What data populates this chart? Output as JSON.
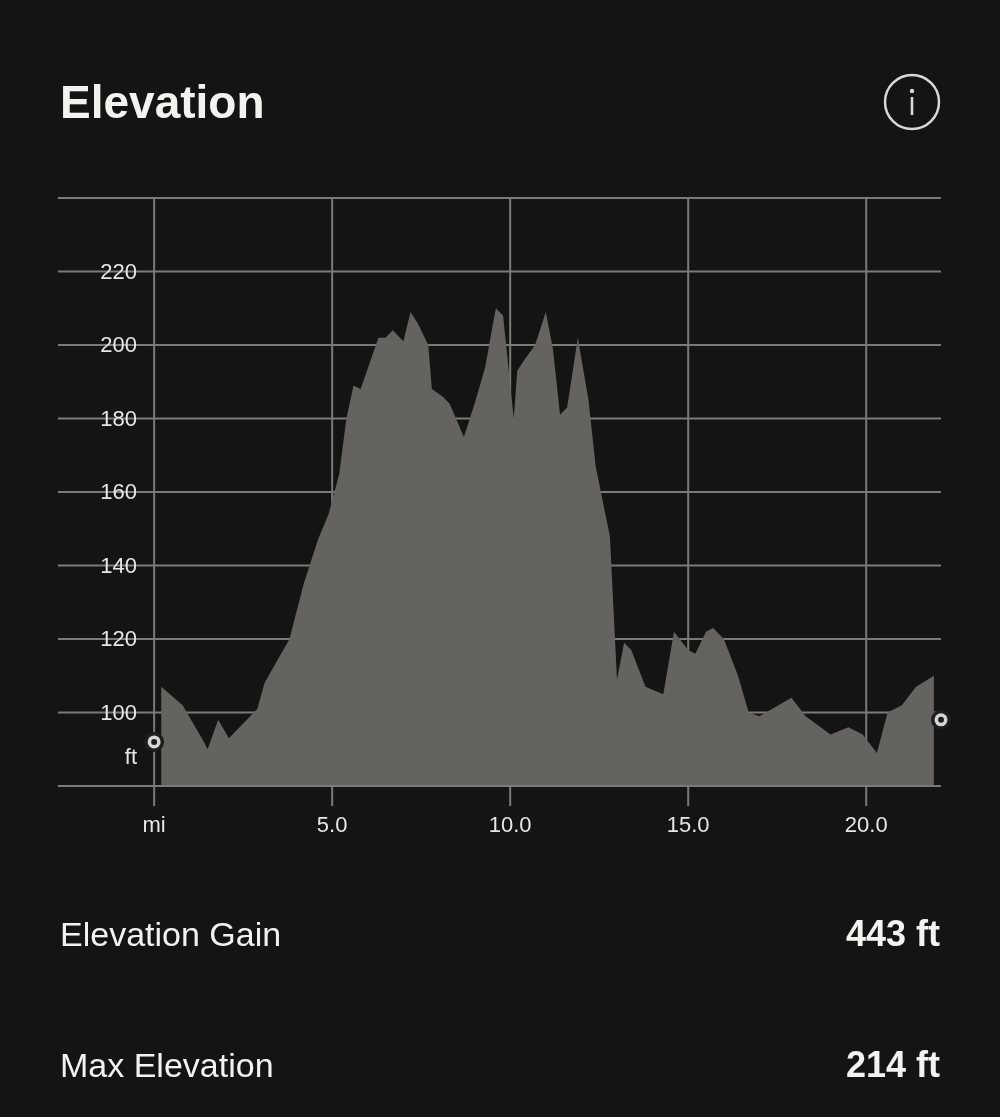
{
  "chart_data": {
    "type": "area",
    "title": "Elevation",
    "ylabel": "ft",
    "xlim": [
      -2.7,
      22.1
    ],
    "ylim": [
      80,
      240
    ],
    "xticks": [
      {
        "value": 0,
        "label": "mi"
      },
      {
        "value": 5,
        "label": "5.0"
      },
      {
        "value": 10,
        "label": "10.0"
      },
      {
        "value": 15,
        "label": "15.0"
      },
      {
        "value": 20,
        "label": "20.0"
      }
    ],
    "yticks": [
      100,
      120,
      140,
      160,
      180,
      200,
      220,
      {
        "value": 240,
        "label": null
      }
    ],
    "grid": true,
    "series": [
      {
        "color": "#64635f",
        "x": [
          0.2,
          0.8,
          1.4,
          1.5,
          1.8,
          2.1,
          2.4,
          2.9,
          3.1,
          3.8,
          4.2,
          4.6,
          4.9,
          5.2,
          5.4,
          5.6,
          5.8,
          6.3,
          6.5,
          6.7,
          7.0,
          7.2,
          7.4,
          7.7,
          7.8,
          8.1,
          8.3,
          8.7,
          9.0,
          9.3,
          9.5,
          9.6,
          9.8,
          10.1,
          10.2,
          10.4,
          10.7,
          11.0,
          11.2,
          11.4,
          11.6,
          11.9,
          12.2,
          12.4,
          12.8,
          13.0,
          13.2,
          13.4,
          13.8,
          14.3,
          14.6,
          15.0,
          15.2,
          15.5,
          15.7,
          16.0,
          16.4,
          16.7,
          17.0,
          17.9,
          18.3,
          19.0,
          19.5,
          19.9,
          20.3,
          20.6,
          21.0,
          21.4,
          21.9
        ],
        "values": [
          107,
          102,
          92,
          90,
          98,
          93,
          96,
          101,
          108,
          120,
          135,
          147,
          154,
          165,
          180,
          189,
          188,
          202,
          202,
          204,
          201,
          209,
          206,
          200,
          188,
          186,
          184,
          175,
          184,
          194,
          205,
          210,
          208,
          180,
          193,
          196,
          200,
          209,
          199,
          181,
          183,
          202,
          185,
          167,
          148,
          109,
          119,
          117,
          107,
          105,
          122,
          117,
          116,
          122,
          123,
          120,
          110,
          100,
          99,
          104,
          99,
          94,
          96,
          94,
          89,
          100,
          102,
          107,
          110
        ]
      },
      {
        "type": "scatter",
        "color": "#d6d6d2",
        "marker": "circle",
        "x": [
          0,
          22.1
        ],
        "values": [
          92,
          98
        ]
      }
    ],
    "annotations": [
      "Elevation Gain",
      "443 ft",
      "Max Elevation",
      "214 ft"
    ]
  }
}
